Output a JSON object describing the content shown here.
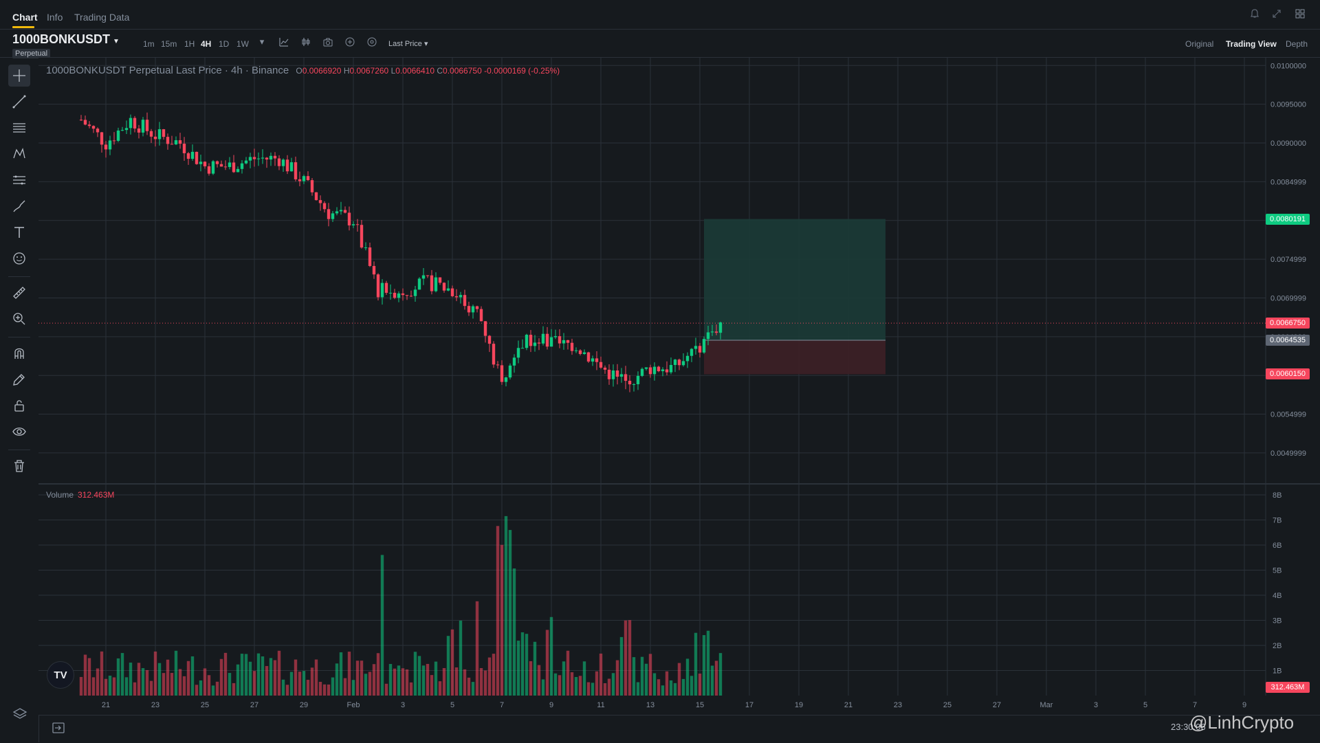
{
  "nav": {
    "tabs": [
      "Chart",
      "Info",
      "Trading Data"
    ],
    "active": "Chart",
    "right_icons": [
      "bell-icon",
      "expand-icon",
      "grid-icon"
    ]
  },
  "toolbar": {
    "symbol": "1000BONKUSDT",
    "contract": "Perpetual",
    "intervals": [
      "1m",
      "15m",
      "1H",
      "4H",
      "1D",
      "1W"
    ],
    "active_interval": "4H",
    "icons": [
      "chevron-down-icon",
      "indicator-icon",
      "candle-type-icon",
      "camera-icon",
      "plus-circle-icon",
      "settings-icon"
    ],
    "price_type": "Last Price",
    "views": [
      "Original",
      "Trading View",
      "Depth"
    ],
    "active_view": "Trading View"
  },
  "legend": {
    "title": "1000BONKUSDT Perpetual Last Price · 4h · Binance",
    "o": "0.0066920",
    "h": "0.0067260",
    "l": "0.0066410",
    "c": "0.0066750",
    "change": "-0.0000169 (-0.25%)"
  },
  "volume_legend": {
    "label": "Volume",
    "value": "312.463M"
  },
  "price_tags": {
    "tp": "0.0080191",
    "current": "0.0066750",
    "entry": "0.0064535",
    "sl": "0.0060150",
    "volume": "312.463M"
  },
  "bottom": {
    "time": "23:30:06",
    "tv_logo": "TV",
    "watermark": "@LinhCrypto"
  },
  "colors": {
    "up": "#0ecb81",
    "down": "#f6465d",
    "background": "#161a1e",
    "grid": "#2b3139",
    "tp_zone": "#1b3b36",
    "sl_zone": "#3d2026"
  },
  "chart_data": {
    "type": "candlestick",
    "price_axis": {
      "ticks": [
        "0.0100000",
        "0.0095000",
        "0.0090000",
        "0.0084999",
        "0.0079999",
        "0.0074999",
        "0.0069999",
        "0.0064999",
        "0.0059999",
        "0.0054999",
        "0.0049999"
      ],
      "range": [
        0.0046,
        0.0101
      ]
    },
    "volume_axis": {
      "ticks": [
        "8B",
        "7B",
        "6B",
        "5B",
        "4B",
        "3B",
        "2B",
        "1B"
      ],
      "range": [
        0,
        8
      ]
    },
    "x_ticks": [
      "21",
      "23",
      "25",
      "27",
      "29",
      "Feb",
      "3",
      "5",
      "7",
      "9",
      "11",
      "13",
      "15",
      "17",
      "19",
      "21",
      "23",
      "25",
      "27",
      "Mar",
      "3",
      "5",
      "7",
      "9"
    ],
    "anchors": [
      [
        "Jan 20",
        0.0093
      ],
      [
        "Jan 21",
        0.009
      ],
      [
        "Jan 22",
        0.0093
      ],
      [
        "Jan 23",
        0.0091
      ],
      [
        "Jan 24",
        0.009
      ],
      [
        "Jan 25",
        0.0087
      ],
      [
        "Jan 26",
        0.0087
      ],
      [
        "Jan 27",
        0.0088
      ],
      [
        "Jan 28",
        0.0088
      ],
      [
        "Jan 29",
        0.0085
      ],
      [
        "Jan 30",
        0.0081
      ],
      [
        "Jan 31",
        0.008
      ],
      [
        "Feb 1",
        0.0071
      ],
      [
        "Feb 2",
        0.0071
      ],
      [
        "Feb 3",
        0.0072
      ],
      [
        "Feb 4",
        0.0071
      ],
      [
        "Feb 5",
        0.0068
      ],
      [
        "Feb 6",
        0.0059
      ],
      [
        "Feb 7",
        0.0065
      ],
      [
        "Feb 8",
        0.0064
      ],
      [
        "Feb 9",
        0.0064
      ],
      [
        "Feb 10",
        0.0061
      ],
      [
        "Feb 11",
        0.0059
      ],
      [
        "Feb 12",
        0.0061
      ],
      [
        "Feb 13",
        0.0061
      ],
      [
        "Feb 14",
        0.0064
      ],
      [
        "Feb 14 20:00",
        0.006675
      ]
    ],
    "volume_spikes": [
      [
        "Feb 1",
        5.8
      ],
      [
        "Feb 4",
        3.2
      ],
      [
        "Feb 5",
        4.5
      ],
      [
        "Feb 6",
        7.2
      ],
      [
        "Feb 7",
        2.9
      ],
      [
        "Feb 8",
        3.3
      ],
      [
        "Feb 11",
        3.2
      ],
      [
        "Feb 14",
        2.7
      ]
    ],
    "position": {
      "take_profit": 0.0080191,
      "entry": 0.0064535,
      "stop_loss": 0.006015,
      "from": "Feb 14 04:00",
      "to": "Feb 21 12:00"
    },
    "last_price": 0.006675
  }
}
